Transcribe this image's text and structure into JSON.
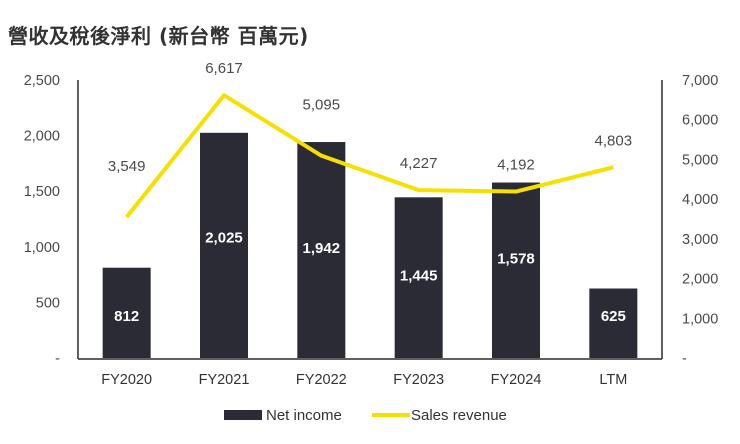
{
  "title": "營收及稅後淨利 (新台幣 百萬元)",
  "colors": {
    "bar": "#2b2b36",
    "line": "#f5e000",
    "axis": "#2b2b2b"
  },
  "chart_data": {
    "type": "bar+line",
    "title": "營收及稅後淨利 (新台幣 百萬元)",
    "categories": [
      "FY2020",
      "FY2021",
      "FY2022",
      "FY2023",
      "FY2024",
      "LTM"
    ],
    "series": [
      {
        "name": "Net income",
        "type": "bar",
        "axis": "left",
        "values": [
          812,
          2025,
          1942,
          1445,
          1578,
          625
        ],
        "labels": [
          "812",
          "2,025",
          "1,942",
          "1,445",
          "1,578",
          "625"
        ]
      },
      {
        "name": "Sales revenue",
        "type": "line",
        "axis": "right",
        "values": [
          3549,
          6617,
          5095,
          4227,
          4192,
          4803
        ],
        "labels": [
          "3,549",
          "6,617",
          "5,095",
          "4,227",
          "4,192",
          "4,803"
        ]
      }
    ],
    "left_axis": {
      "ylim": [
        0,
        2500
      ],
      "ticks": [
        "-",
        "500",
        "1,000",
        "1,500",
        "2,000",
        "2,500"
      ]
    },
    "right_axis": {
      "ylim": [
        0,
        7000
      ],
      "ticks": [
        "-",
        "1,000",
        "2,000",
        "3,000",
        "4,000",
        "5,000",
        "6,000",
        "7,000"
      ]
    },
    "grid": false,
    "legend_position": "bottom"
  },
  "legend": {
    "bar_label": "Net income",
    "line_label": "Sales revenue"
  }
}
